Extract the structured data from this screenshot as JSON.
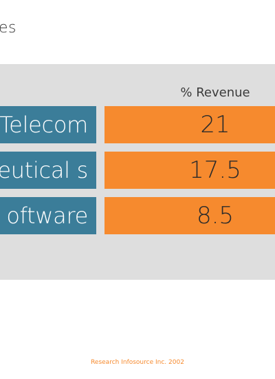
{
  "title_fragment": "es",
  "table": {
    "column_header": "% Revenue",
    "rows": [
      {
        "label": "Telecom",
        "value": "21"
      },
      {
        "label": "eutical s",
        "value": "17.5"
      },
      {
        "label": "oftware",
        "value": "8.5"
      }
    ]
  },
  "footer": "Research Infosource Inc. 2002",
  "colors": {
    "label_bg": "#3b7d99",
    "value_bg": "#f68a2e",
    "panel_bg": "#dedede",
    "footer_text": "#f68a2e"
  }
}
